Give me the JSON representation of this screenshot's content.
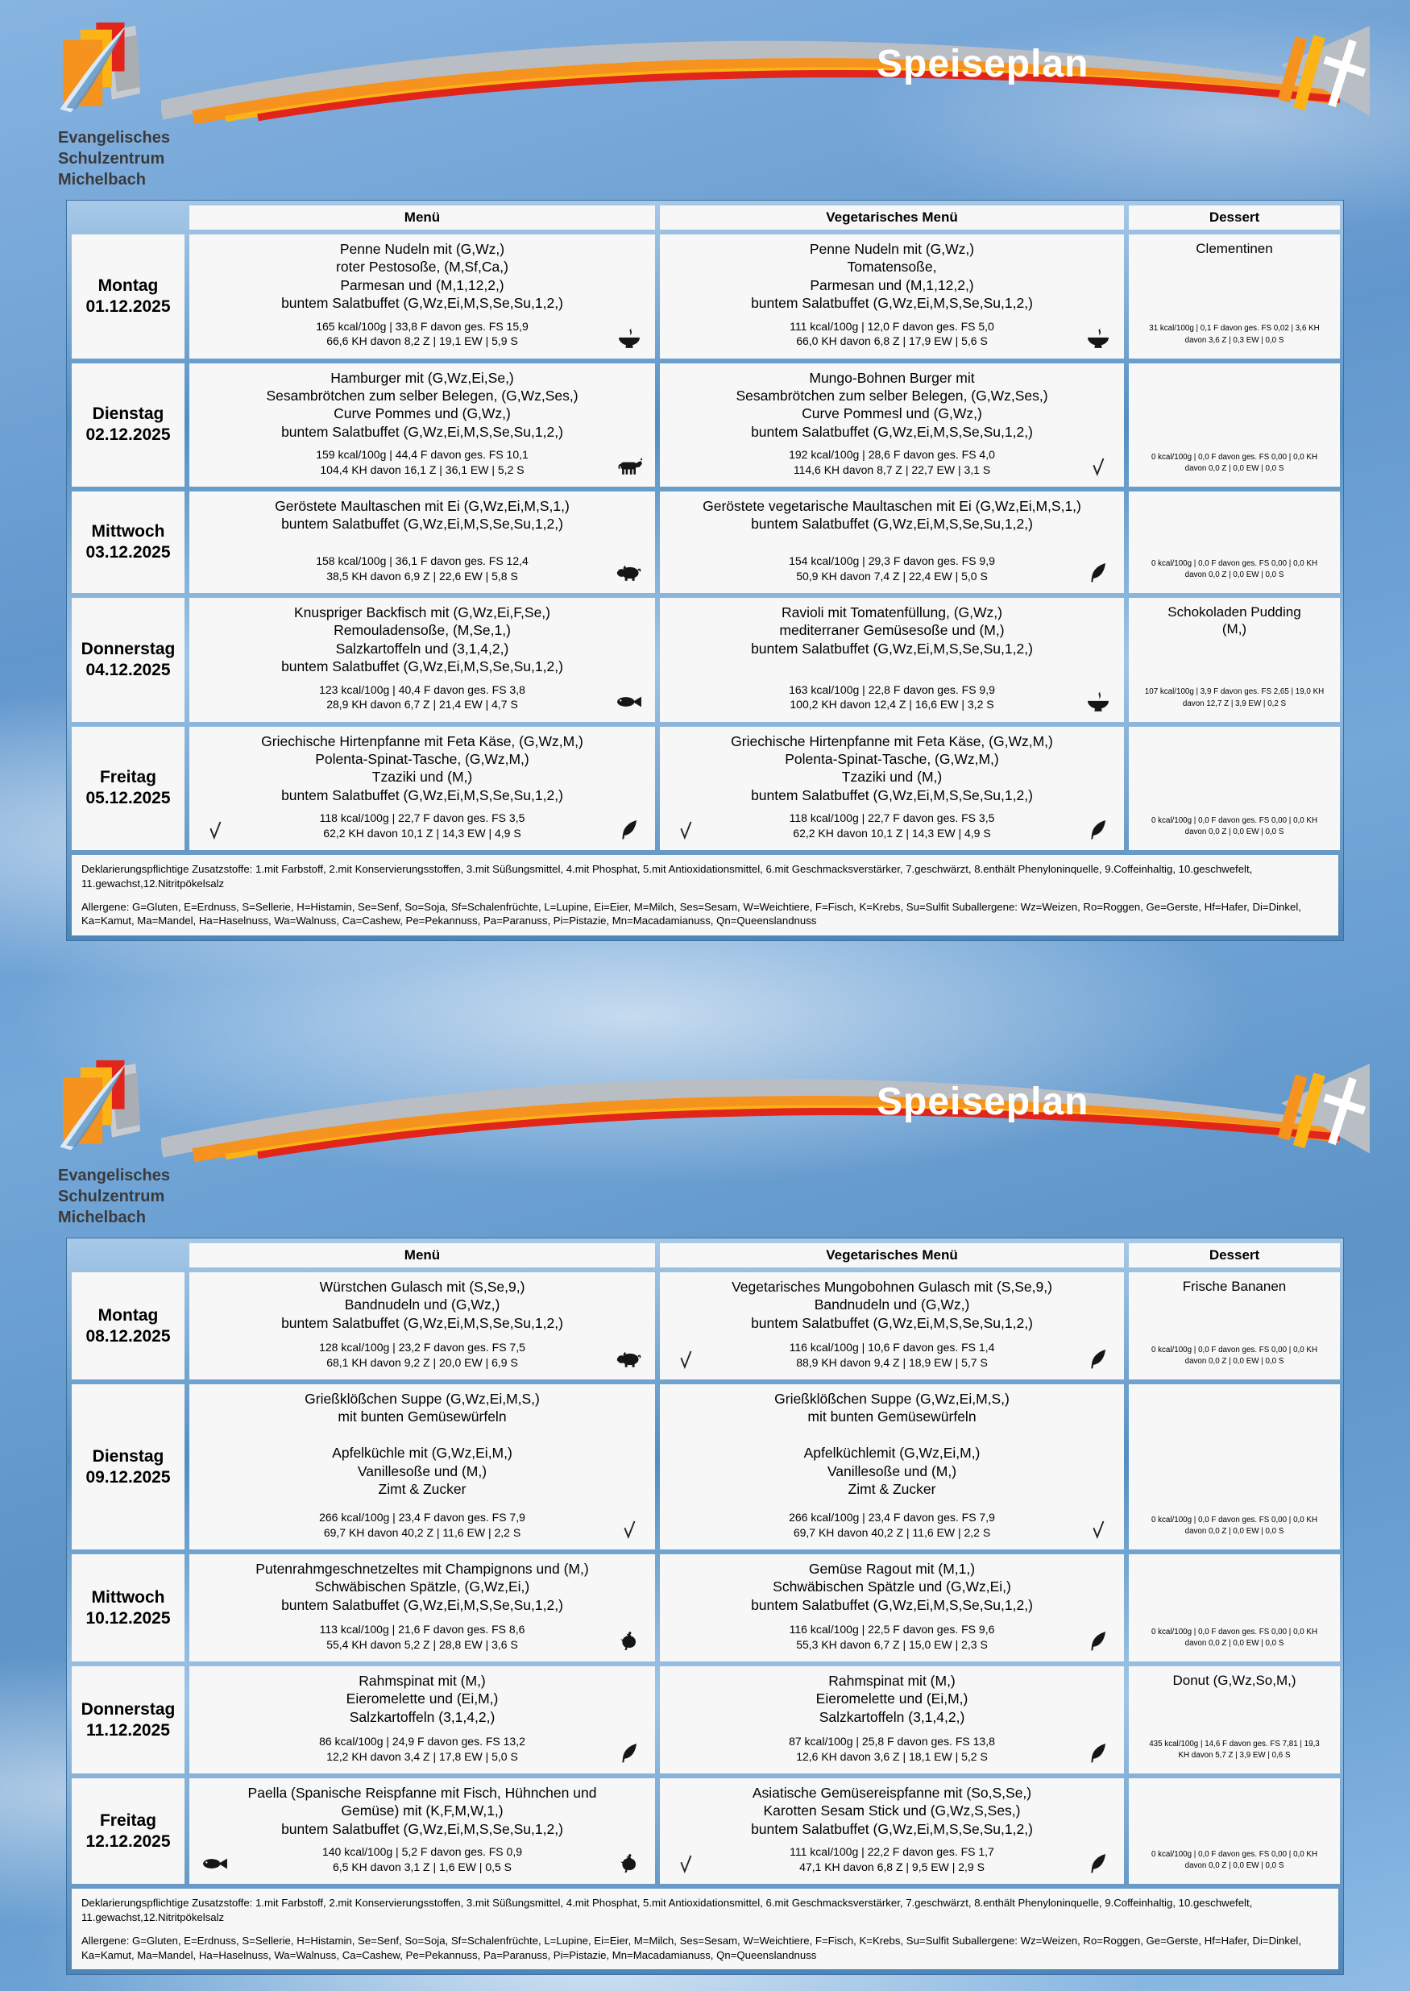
{
  "brand": {
    "name_lines": [
      "Evangelisches",
      "Schulzentrum",
      "Michelbach"
    ],
    "title": "Speiseplan",
    "colors": {
      "orange": "#F6921E",
      "amber": "#FCB316",
      "red": "#E1251B",
      "gray": "#B9BDC4",
      "sky": "#6297CD"
    }
  },
  "table": {
    "columns": [
      "Menü",
      "Vegetarisches Menü",
      "Dessert"
    ]
  },
  "legend": {
    "additives": "Deklarierungspflichtige Zusatzstoffe: 1.mit Farbstoff, 2.mit Konservierungsstoffen, 3.mit Süßungsmittel, 4.mit Phosphat, 5.mit Antioxidationsmittel, 6.mit Geschmacksverstärker, 7.geschwärzt, 8.enthält Phenyloninquelle, 9.Coffeinhaltig, 10.geschwefelt, 11.gewachst,12.Nitritpökelsalz",
    "allergens": "Allergene: G=Gluten, E=Erdnuss, S=Sellerie, H=Histamin, Se=Senf, So=Soja, Sf=Schalenfrüchte, L=Lupine, Ei=Eier, M=Milch, Ses=Sesam, W=Weichtiere, F=Fisch, K=Krebs, Su=Sulfit Suballergene: Wz=Weizen, Ro=Roggen, Ge=Gerste, Hf=Hafer, Di=Dinkel, Ka=Kamut, Ma=Mandel, Ha=Haselnuss, Wa=Walnuss, Ca=Cashew, Pe=Pekannuss, Pa=Paranuss, Pi=Pistazie, Mn=Macadamianuss, Qn=Queenslandnuss"
  },
  "weeks": [
    {
      "days": [
        {
          "day": "Montag",
          "date": "01.12.2025",
          "menu": {
            "lines": [
              "Penne Nudeln mit (G,Wz,)",
              "roter Pestosoße, (M,Sf,Ca,)",
              "Parmesan und (M,1,12,2,)",
              "buntem Salatbuffet (G,Wz,Ei,M,S,Se,Su,1,2,)"
            ],
            "nutrition": [
              "165 kcal/100g | 33,8 F davon ges. FS 15,9",
              "66,6 KH davon 8,2 Z | 19,1 EW | 5,9 S"
            ],
            "icon_right": "bowl"
          },
          "veg": {
            "lines": [
              "Penne Nudeln mit (G,Wz,)",
              "Tomatensoße,",
              "Parmesan und (M,1,12,2,)",
              "buntem Salatbuffet (G,Wz,Ei,M,S,Se,Su,1,2,)"
            ],
            "nutrition": [
              "111 kcal/100g | 12,0 F davon ges. FS 5,0",
              "66,0 KH davon 6,8 Z | 17,9 EW | 5,6 S"
            ],
            "icon_right": "bowl"
          },
          "dessert": {
            "lines": [
              "Clementinen"
            ],
            "nutrition": "31 kcal/100g | 0,1 F davon ges. FS 0,02 | 3,6 KH davon 3,6 Z | 0,3 EW | 0,0 S"
          }
        },
        {
          "day": "Dienstag",
          "date": "02.12.2025",
          "menu": {
            "lines": [
              "Hamburger mit (G,Wz,Ei,Se,)",
              "Sesambrötchen zum selber Belegen, (G,Wz,Ses,)",
              "Curve Pommes und (G,Wz,)",
              "buntem Salatbuffet (G,Wz,Ei,M,S,Se,Su,1,2,)"
            ],
            "nutrition": [
              "159 kcal/100g | 44,4 F davon ges. FS 10,1",
              "104,4 KH davon 16,1 Z | 36,1 EW | 5,2 S"
            ],
            "icon_right": "cow"
          },
          "veg": {
            "lines": [
              "Mungo-Bohnen Burger mit",
              "Sesambrötchen zum selber Belegen, (G,Wz,Ses,)",
              "Curve Pommesl und (G,Wz,)",
              "buntem Salatbuffet (G,Wz,Ei,M,S,Se,Su,1,2,)"
            ],
            "nutrition": [
              "192 kcal/100g | 28,6 F davon ges. FS 4,0",
              "114,6 KH davon 8,7 Z | 22,7 EW | 3,1 S"
            ],
            "icon_right": "v"
          },
          "dessert": {
            "lines": [],
            "nutrition": "0 kcal/100g | 0,0 F davon ges. FS 0,00 | 0,0 KH davon 0,0 Z | 0,0 EW | 0,0 S"
          }
        },
        {
          "day": "Mittwoch",
          "date": "03.12.2025",
          "menu": {
            "lines": [
              "Geröstete Maultaschen mit Ei (G,Wz,Ei,M,S,1,)",
              "buntem Salatbuffet (G,Wz,Ei,M,S,Se,Su,1,2,)"
            ],
            "nutrition": [
              "158 kcal/100g | 36,1 F davon ges. FS 12,4",
              "38,5 KH davon 6,9 Z | 22,6 EW | 5,8 S"
            ],
            "icon_right": "pig"
          },
          "veg": {
            "lines": [
              "Geröstete vegetarische Maultaschen mit Ei (G,Wz,Ei,M,S,1,)",
              "buntem Salatbuffet (G,Wz,Ei,M,S,Se,Su,1,2,)"
            ],
            "nutrition": [
              "154 kcal/100g | 29,3 F davon ges. FS 9,9",
              "50,9 KH davon 7,4 Z | 22,4 EW | 5,0 S"
            ],
            "icon_right": "leaf"
          },
          "dessert": {
            "lines": [],
            "nutrition": "0 kcal/100g | 0,0 F davon ges. FS 0,00 | 0,0 KH davon 0,0 Z | 0,0 EW | 0,0 S"
          }
        },
        {
          "day": "Donnerstag",
          "date": "04.12.2025",
          "menu": {
            "lines": [
              "Knuspriger Backfisch mit (G,Wz,Ei,F,Se,)",
              "Remouladensoße, (M,Se,1,)",
              "Salzkartoffeln und (3,1,4,2,)",
              "buntem Salatbuffet (G,Wz,Ei,M,S,Se,Su,1,2,)"
            ],
            "nutrition": [
              "123 kcal/100g | 40,4 F davon ges. FS 3,8",
              "28,9 KH davon 6,7 Z | 21,4 EW | 4,7 S"
            ],
            "icon_right": "fish"
          },
          "veg": {
            "lines": [
              "Ravioli mit Tomatenfüllung, (G,Wz,)",
              "mediterraner Gemüsesoße und (M,)",
              "buntem Salatbuffet (G,Wz,Ei,M,S,Se,Su,1,2,)"
            ],
            "nutrition": [
              "163 kcal/100g | 22,8 F davon ges. FS 9,9",
              "100,2 KH davon 12,4 Z | 16,6 EW | 3,2 S"
            ],
            "icon_right": "bowl"
          },
          "dessert": {
            "lines": [
              "Schokoladen Pudding",
              "(M,)"
            ],
            "nutrition": "107 kcal/100g | 3,9 F davon ges. FS 2,65 | 19,0 KH davon 12,7 Z | 3,9 EW | 0,2 S"
          }
        },
        {
          "day": "Freitag",
          "date": "05.12.2025",
          "menu": {
            "lines": [
              "Griechische Hirtenpfanne mit Feta Käse, (G,Wz,M,)",
              "Polenta-Spinat-Tasche, (G,Wz,M,)",
              "Tzaziki und (M,)",
              "buntem Salatbuffet (G,Wz,Ei,M,S,Se,Su,1,2,)"
            ],
            "nutrition": [
              "118 kcal/100g | 22,7 F davon ges. FS 3,5",
              "62,2 KH davon 10,1 Z | 14,3 EW | 4,9 S"
            ],
            "icon_left": "v",
            "icon_right": "leaf"
          },
          "veg": {
            "lines": [
              "Griechische Hirtenpfanne mit Feta Käse, (G,Wz,M,)",
              "Polenta-Spinat-Tasche, (G,Wz,M,)",
              "Tzaziki und (M,)",
              "buntem Salatbuffet (G,Wz,Ei,M,S,Se,Su,1,2,)"
            ],
            "nutrition": [
              "118 kcal/100g | 22,7 F davon ges. FS 3,5",
              "62,2 KH davon 10,1 Z | 14,3 EW | 4,9 S"
            ],
            "icon_left": "v",
            "icon_right": "leaf"
          },
          "dessert": {
            "lines": [],
            "nutrition": "0 kcal/100g | 0,0 F davon ges. FS 0,00 | 0,0 KH davon 0,0 Z | 0,0 EW | 0,0 S"
          }
        }
      ]
    },
    {
      "days": [
        {
          "day": "Montag",
          "date": "08.12.2025",
          "menu": {
            "lines": [
              "Würstchen Gulasch mit (S,Se,9,)",
              "Bandnudeln und (G,Wz,)",
              "buntem Salatbuffet (G,Wz,Ei,M,S,Se,Su,1,2,)"
            ],
            "nutrition": [
              "128 kcal/100g | 23,2 F davon ges. FS 7,5",
              "68,1 KH davon 9,2 Z | 20,0 EW | 6,9 S"
            ],
            "icon_right": "pig"
          },
          "veg": {
            "lines": [
              "Vegetarisches Mungobohnen Gulasch mit (S,Se,9,)",
              "Bandnudeln und (G,Wz,)",
              "buntem Salatbuffet (G,Wz,Ei,M,S,Se,Su,1,2,)"
            ],
            "nutrition": [
              "116 kcal/100g | 10,6 F davon ges. FS 1,4",
              "88,9 KH davon 9,4 Z | 18,9 EW | 5,7 S"
            ],
            "icon_left": "v",
            "icon_right": "leaf"
          },
          "dessert": {
            "lines": [
              "Frische Bananen"
            ],
            "nutrition": "0 kcal/100g | 0,0 F davon ges. FS 0,00 | 0,0 KH davon 0,0 Z | 0,0 EW | 0,0 S"
          }
        },
        {
          "day": "Dienstag",
          "date": "09.12.2025",
          "menu": {
            "lines": [
              "Grießklößchen Suppe (G,Wz,Ei,M,S,)",
              "mit bunten Gemüsewürfeln",
              "",
              "Apfelküchle mit (G,Wz,Ei,M,)",
              "Vanillesoße und (M,)",
              "Zimt & Zucker"
            ],
            "nutrition": [
              "266 kcal/100g | 23,4 F davon ges. FS 7,9",
              "69,7 KH davon 40,2 Z | 11,6 EW | 2,2 S"
            ],
            "icon_right": "v"
          },
          "veg": {
            "lines": [
              "Grießklößchen Suppe (G,Wz,Ei,M,S,)",
              "mit bunten Gemüsewürfeln",
              "",
              "Apfelküchlemit (G,Wz,Ei,M,)",
              "Vanillesoße und (M,)",
              "Zimt & Zucker"
            ],
            "nutrition": [
              "266 kcal/100g | 23,4 F davon ges. FS 7,9",
              "69,7 KH davon 40,2 Z | 11,6 EW | 2,2 S"
            ],
            "icon_right": "v"
          },
          "dessert": {
            "lines": [],
            "nutrition": "0 kcal/100g | 0,0 F davon ges. FS 0,00 | 0,0 KH davon 0,0 Z | 0,0 EW | 0,0 S"
          }
        },
        {
          "day": "Mittwoch",
          "date": "10.12.2025",
          "menu": {
            "lines": [
              "Putenrahmgeschnetzeltes mit Champignons und (M,)",
              "Schwäbischen Spätzle, (G,Wz,Ei,)",
              "buntem Salatbuffet (G,Wz,Ei,M,S,Se,Su,1,2,)"
            ],
            "nutrition": [
              "113 kcal/100g | 21,6 F davon ges. FS 8,6",
              "55,4 KH davon 5,2 Z | 28,8 EW | 3,6 S"
            ],
            "icon_right": "poultry"
          },
          "veg": {
            "lines": [
              "Gemüse Ragout mit (M,1,)",
              "Schwäbischen Spätzle und (G,Wz,Ei,)",
              "buntem Salatbuffet (G,Wz,Ei,M,S,Se,Su,1,2,)"
            ],
            "nutrition": [
              "116 kcal/100g | 22,5 F davon ges. FS 9,6",
              "55,3 KH davon 6,7 Z | 15,0 EW | 2,3 S"
            ],
            "icon_right": "leaf"
          },
          "dessert": {
            "lines": [],
            "nutrition": "0 kcal/100g | 0,0 F davon ges. FS 0,00 | 0,0 KH davon 0,0 Z | 0,0 EW | 0,0 S"
          }
        },
        {
          "day": "Donnerstag",
          "date": "11.12.2025",
          "menu": {
            "lines": [
              "Rahmspinat mit (M,)",
              "Eieromelette und (Ei,M,)",
              "Salzkartoffeln (3,1,4,2,)"
            ],
            "nutrition": [
              "86 kcal/100g | 24,9 F davon ges. FS 13,2",
              "12,2 KH davon 3,4 Z | 17,8 EW | 5,0 S"
            ],
            "icon_right": "leaf"
          },
          "veg": {
            "lines": [
              "Rahmspinat mit (M,)",
              "Eieromelette und (Ei,M,)",
              "Salzkartoffeln (3,1,4,2,)"
            ],
            "nutrition": [
              "87 kcal/100g | 25,8 F davon ges. FS 13,8",
              "12,6 KH davon 3,6 Z | 18,1 EW | 5,2 S"
            ],
            "icon_right": "leaf"
          },
          "dessert": {
            "lines": [
              "Donut (G,Wz,So,M,)"
            ],
            "nutrition": "435 kcal/100g | 14,6 F davon ges. FS 7,81 | 19,3 KH davon 5,7 Z | 3,9 EW | 0,6 S"
          }
        },
        {
          "day": "Freitag",
          "date": "12.12.2025",
          "menu": {
            "lines": [
              "Paella (Spanische Reispfanne mit Fisch, Hühnchen und",
              "Gemüse) mit (K,F,M,W,1,)",
              "buntem Salatbuffet (G,Wz,Ei,M,S,Se,Su,1,2,)"
            ],
            "nutrition": [
              "140 kcal/100g | 5,2 F davon ges. FS 0,9",
              "6,5 KH davon 3,1 Z | 1,6 EW | 0,5 S"
            ],
            "icon_left": "fish",
            "icon_right": "poultry"
          },
          "veg": {
            "lines": [
              "Asiatische Gemüsereispfanne mit (So,S,Se,)",
              "Karotten Sesam Stick und (G,Wz,S,Ses,)",
              "buntem Salatbuffet (G,Wz,Ei,M,S,Se,Su,1,2,)"
            ],
            "nutrition": [
              "111 kcal/100g | 22,2 F davon ges. FS 1,7",
              "47,1 KH davon 6,8 Z | 9,5 EW | 2,9 S"
            ],
            "icon_left": "v",
            "icon_right": "leaf"
          },
          "dessert": {
            "lines": [],
            "nutrition": "0 kcal/100g | 0,0 F davon ges. FS 0,00 | 0,0 KH davon 0,0 Z | 0,0 EW | 0,0 S"
          }
        }
      ]
    }
  ]
}
